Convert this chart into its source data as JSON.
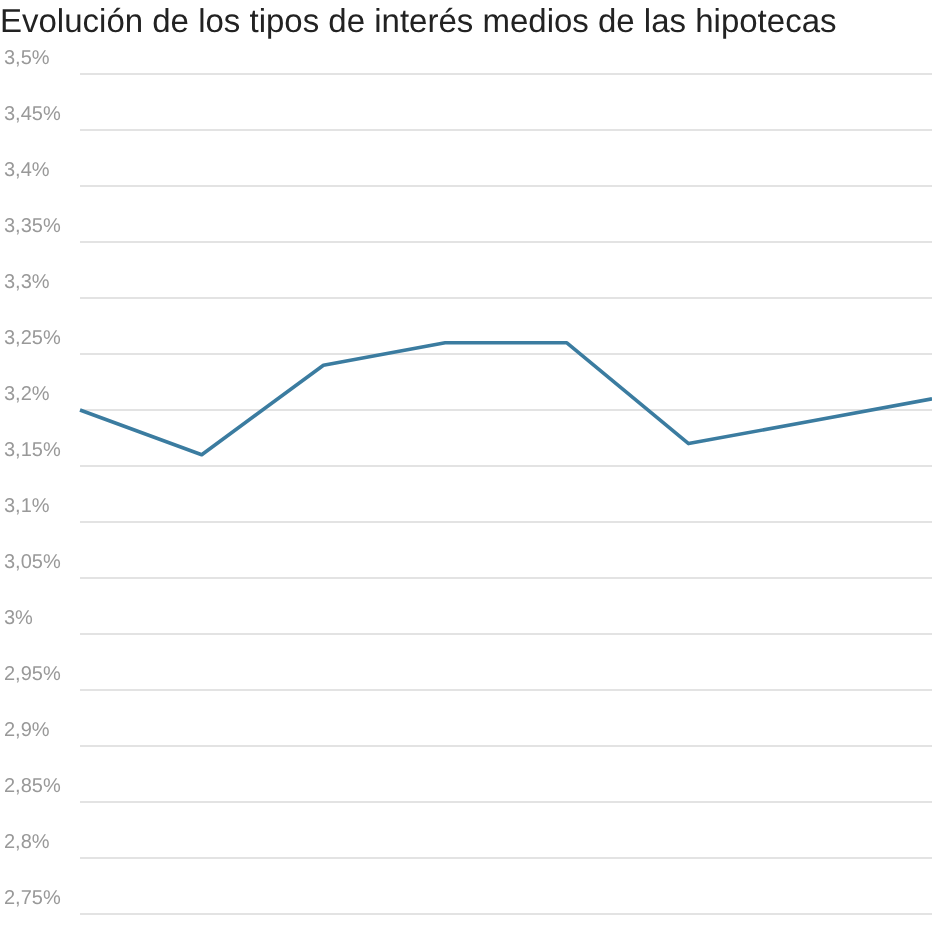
{
  "chart_data": {
    "type": "line",
    "title": "Evolución de los tipos de interés medios de las hipotecas",
    "categories": [
      null,
      null,
      null,
      null,
      null,
      null,
      null,
      null
    ],
    "series": [
      {
        "color": "#3b7ca0",
        "values": [
          3.2,
          3.16,
          3.24,
          3.26,
          3.26,
          3.17,
          3.19,
          3.21
        ]
      }
    ],
    "ylim": [
      2.75,
      3.5
    ],
    "yticks": [
      {
        "value": 2.75,
        "label": "2,75%"
      },
      {
        "value": 2.8,
        "label": "2,8%"
      },
      {
        "value": 2.85,
        "label": "2,85%"
      },
      {
        "value": 2.9,
        "label": "2,9%"
      },
      {
        "value": 2.95,
        "label": "2,95%"
      },
      {
        "value": 3,
        "label": "3%"
      },
      {
        "value": 3.05,
        "label": "3,05%"
      },
      {
        "value": 3.1,
        "label": "3,1%"
      },
      {
        "value": 3.15,
        "label": "3,15%"
      },
      {
        "value": 3.2,
        "label": "3,2%"
      },
      {
        "value": 3.25,
        "label": "3,25%"
      },
      {
        "value": 3.3,
        "label": "3,3%"
      },
      {
        "value": 3.35,
        "label": "3,35%"
      },
      {
        "value": 3.4,
        "label": "3,4%"
      },
      {
        "value": 3.45,
        "label": "3,45%"
      },
      {
        "value": 3.5,
        "label": "3,5%"
      }
    ],
    "grid": "y",
    "marker": "none",
    "line_style": "solid",
    "legend": false,
    "tick_labels": "y"
  }
}
